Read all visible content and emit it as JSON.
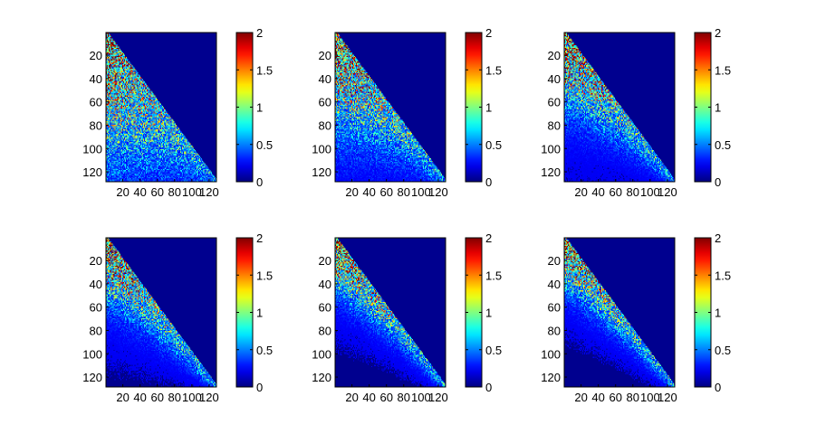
{
  "colormap": "jet",
  "colormap_stops": [
    "#00008f",
    "#0000ff",
    "#00ffff",
    "#ffff00",
    "#ff0000",
    "#800000"
  ],
  "chart_data": [
    {
      "type": "heatmap",
      "title": "",
      "xlabel": "",
      "ylabel": "",
      "size": 128,
      "pattern": "lower-triangular, broad spread",
      "spread": 1.0,
      "xlim": [
        1,
        128
      ],
      "ylim": [
        128,
        1
      ],
      "x_ticks": [
        "20",
        "40",
        "60",
        "80",
        "100",
        "120"
      ],
      "y_ticks": [
        "20",
        "40",
        "60",
        "80",
        "100",
        "120"
      ],
      "clim": [
        0,
        2
      ],
      "colorbar_ticks": [
        "0",
        "0.5",
        "1",
        "1.5",
        "2"
      ]
    },
    {
      "type": "heatmap",
      "title": "",
      "xlabel": "",
      "ylabel": "",
      "size": 128,
      "pattern": "lower-triangular, moderate spread",
      "spread": 0.7,
      "xlim": [
        1,
        128
      ],
      "ylim": [
        128,
        1
      ],
      "x_ticks": [
        "20",
        "40",
        "60",
        "80",
        "100",
        "120"
      ],
      "y_ticks": [
        "20",
        "40",
        "60",
        "80",
        "100",
        "120"
      ],
      "clim": [
        0,
        2
      ],
      "colorbar_ticks": [
        "0",
        "0.5",
        "1",
        "1.5",
        "2"
      ]
    },
    {
      "type": "heatmap",
      "title": "",
      "xlabel": "",
      "ylabel": "",
      "size": 128,
      "pattern": "lower-triangular band",
      "spread": 0.5,
      "xlim": [
        1,
        128
      ],
      "ylim": [
        128,
        1
      ],
      "x_ticks": [
        "20",
        "40",
        "60",
        "80",
        "100",
        "120"
      ],
      "y_ticks": [
        "20",
        "40",
        "60",
        "80",
        "100",
        "120"
      ],
      "clim": [
        0,
        2
      ],
      "colorbar_ticks": [
        "0",
        "0.5",
        "1",
        "1.5",
        "2"
      ]
    },
    {
      "type": "heatmap",
      "title": "",
      "xlabel": "",
      "ylabel": "",
      "size": 128,
      "pattern": "near-diagonal band",
      "spread": 0.4,
      "xlim": [
        1,
        128
      ],
      "ylim": [
        128,
        1
      ],
      "x_ticks": [
        "20",
        "40",
        "60",
        "80",
        "100",
        "120"
      ],
      "y_ticks": [
        "20",
        "40",
        "60",
        "80",
        "100",
        "120"
      ],
      "clim": [
        0,
        2
      ],
      "colorbar_ticks": [
        "0",
        "0.5",
        "1",
        "1.5",
        "2"
      ]
    },
    {
      "type": "heatmap",
      "title": "",
      "xlabel": "",
      "ylabel": "",
      "size": 128,
      "pattern": "narrow diagonal band",
      "spread": 0.32,
      "xlim": [
        1,
        128
      ],
      "ylim": [
        128,
        1
      ],
      "x_ticks": [
        "20",
        "40",
        "60",
        "80",
        "100",
        "120"
      ],
      "y_ticks": [
        "20",
        "40",
        "60",
        "80",
        "100",
        "120"
      ],
      "clim": [
        0,
        2
      ],
      "colorbar_ticks": [
        "0",
        "0.5",
        "1",
        "1.5",
        "2"
      ]
    },
    {
      "type": "heatmap",
      "title": "",
      "xlabel": "",
      "ylabel": "",
      "size": 128,
      "pattern": "narrow diagonal band",
      "spread": 0.3,
      "xlim": [
        1,
        128
      ],
      "ylim": [
        128,
        1
      ],
      "x_ticks": [
        "20",
        "40",
        "60",
        "80",
        "100",
        "120"
      ],
      "y_ticks": [
        "20",
        "40",
        "60",
        "80",
        "100",
        "120"
      ],
      "clim": [
        0,
        2
      ],
      "colorbar_ticks": [
        "0",
        "0.5",
        "1",
        "1.5",
        "2"
      ]
    }
  ]
}
